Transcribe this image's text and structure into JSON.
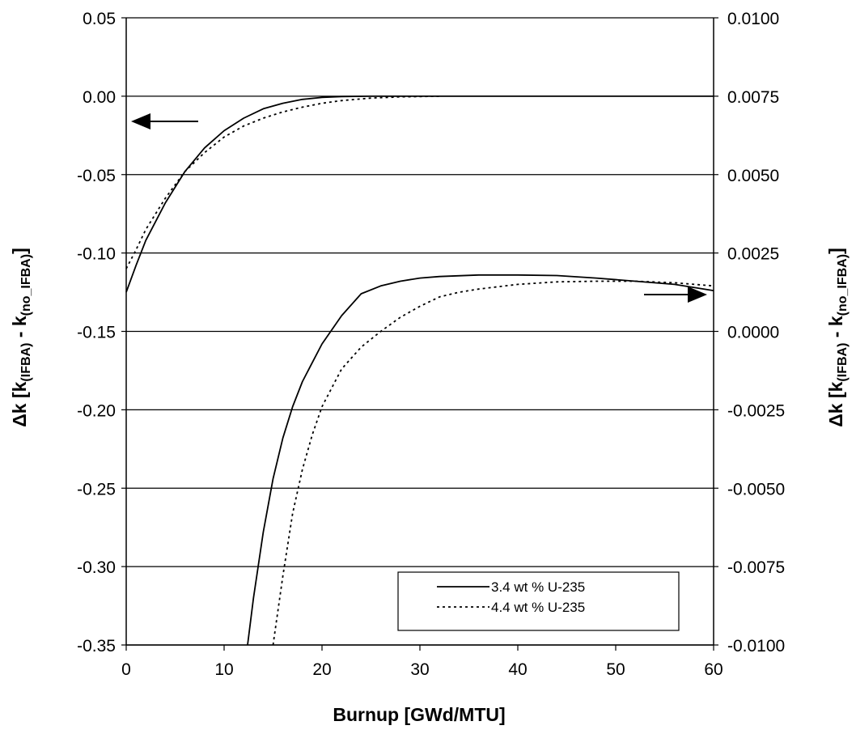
{
  "chart_data": {
    "type": "line",
    "title": "",
    "xlabel": "Burnup [GWd/MTU]",
    "ylabel_left": {
      "main": "Δk [k",
      "sub1": "(IFBA)",
      "mid": " - k",
      "sub2": "(no_IFBA)",
      "end": "]"
    },
    "ylabel_right": {
      "main": "Δk [k",
      "sub1": "(IFBA)",
      "mid": " - k",
      "sub2": "(no_IFBA)",
      "end": "]"
    },
    "xlim": [
      0,
      60
    ],
    "ylim_left": [
      -0.35,
      0.05
    ],
    "ylim_right": [
      -0.01,
      0.01
    ],
    "x_ticks": [
      "0",
      "10",
      "20",
      "30",
      "40",
      "50",
      "60"
    ],
    "y_left_ticks": [
      "0.05",
      "0.00",
      "-0.05",
      "-0.10",
      "-0.15",
      "-0.20",
      "-0.25",
      "-0.30",
      "-0.35"
    ],
    "y_right_ticks": [
      "0.0100",
      "0.0075",
      "0.0050",
      "0.0025",
      "0.0000",
      "-0.0025",
      "-0.0050",
      "-0.0075",
      "-0.0100"
    ],
    "grid": "horizontal",
    "legend_position": "bottom-right",
    "series": [
      {
        "name": "3.4 wt % U-235",
        "axis": "left",
        "style": "solid",
        "x": [
          0,
          1,
          2,
          4,
          6,
          8,
          10,
          12,
          14,
          16,
          18,
          20,
          22,
          25,
          30,
          40,
          50,
          60
        ],
        "y": [
          -0.125,
          -0.108,
          -0.092,
          -0.068,
          -0.048,
          -0.033,
          -0.022,
          -0.014,
          -0.008,
          -0.0045,
          -0.002,
          -0.0008,
          -0.0002,
          0,
          0,
          0,
          0,
          0
        ]
      },
      {
        "name": "4.4 wt % U-235",
        "axis": "left",
        "style": "dotted",
        "x": [
          0,
          1,
          2,
          4,
          6,
          8,
          10,
          12,
          14,
          16,
          18,
          20,
          22,
          25,
          28,
          32
        ],
        "y": [
          -0.11,
          -0.098,
          -0.085,
          -0.065,
          -0.048,
          -0.036,
          -0.026,
          -0.019,
          -0.014,
          -0.01,
          -0.007,
          -0.0045,
          -0.0028,
          -0.0012,
          -0.0004,
          0
        ]
      },
      {
        "name": "3.4 wt % U-235",
        "axis": "right",
        "style": "solid",
        "x": [
          12.4,
          13.0,
          14.0,
          15.0,
          16.0,
          17.0,
          18.0,
          19.0,
          20.0,
          22.0,
          24.0,
          26.0,
          28.0,
          30.0,
          32.0,
          36.0,
          40.0,
          44.0,
          48.0,
          52.0,
          56.0,
          60.0
        ],
        "y": [
          -0.01,
          -0.0085,
          -0.0064,
          -0.0047,
          -0.0034,
          -0.0024,
          -0.0016,
          -0.001,
          -0.0004,
          0.0005,
          0.0012,
          0.00145,
          0.0016,
          0.0017,
          0.00175,
          0.0018,
          0.0018,
          0.00178,
          0.0017,
          0.0016,
          0.0015,
          0.0013
        ]
      },
      {
        "name": "4.4 wt % U-235",
        "axis": "right",
        "style": "dotted",
        "x": [
          15.0,
          16.0,
          17.0,
          18.0,
          19.0,
          20.0,
          22.0,
          24.0,
          26.0,
          28.0,
          30.0,
          32.0,
          34.0,
          36.0,
          40.0,
          44.0,
          48.0,
          52.0,
          56.0,
          60.0
        ],
        "y": [
          -0.01,
          -0.0078,
          -0.0058,
          -0.0044,
          -0.0033,
          -0.0024,
          -0.0012,
          -0.0005,
          0.0,
          0.00045,
          0.0008,
          0.0011,
          0.00125,
          0.00135,
          0.0015,
          0.00158,
          0.0016,
          0.0016,
          0.00155,
          0.00145
        ]
      }
    ],
    "colors": {
      "line": "#000000",
      "grid": "#000000",
      "background": "#ffffff"
    }
  }
}
